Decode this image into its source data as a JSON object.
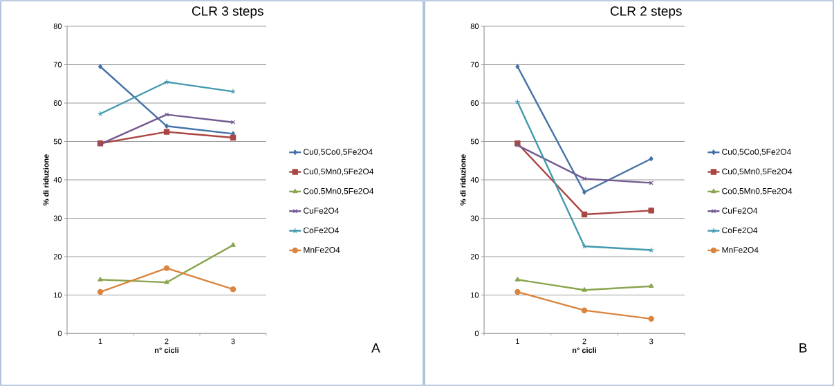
{
  "chart_data": [
    {
      "type": "line",
      "title": "CLR 3 steps",
      "xlabel": "n° cicli",
      "ylabel": "% di riduzione",
      "categories": [
        "1",
        "2",
        "3"
      ],
      "series": [
        {
          "name": "Cu0,5Co0,5Fe2O4",
          "color": "#4572a7",
          "marker": "diamond",
          "values": [
            69.5,
            54,
            52
          ]
        },
        {
          "name": "Cu0,5Mn0,5Fe2O4",
          "color": "#aa4643",
          "marker": "square",
          "values": [
            49.5,
            52.5,
            51
          ]
        },
        {
          "name": "Co0,5Mn0,5Fe2O4",
          "color": "#89a54e",
          "marker": "triangle",
          "values": [
            14,
            13.3,
            23
          ]
        },
        {
          "name": "CuFe2O4",
          "color": "#71588f",
          "marker": "cross",
          "values": [
            49.3,
            57,
            55
          ]
        },
        {
          "name": "CoFe2O4",
          "color": "#4198af",
          "marker": "cross",
          "values": [
            57.2,
            65.5,
            63
          ]
        },
        {
          "name": "MnFe2O4",
          "color": "#db843d",
          "marker": "circle",
          "values": [
            10.8,
            17,
            11.5
          ]
        }
      ],
      "ylim": [
        0,
        80
      ],
      "yticks": [
        0,
        10,
        20,
        30,
        40,
        50,
        60,
        70,
        80
      ],
      "grid": "y",
      "legend": "right",
      "annotations": [
        "A"
      ]
    },
    {
      "type": "line",
      "title": "CLR 2 steps",
      "xlabel": "n° cicli",
      "ylabel": "% di riduzione",
      "categories": [
        "1",
        "2",
        "3"
      ],
      "series": [
        {
          "name": "Cu0,5Co0,5Fe2O4",
          "color": "#4572a7",
          "marker": "diamond",
          "values": [
            69.5,
            36.8,
            45.5
          ]
        },
        {
          "name": "Cu0,5Mn0,5Fe2O4",
          "color": "#aa4643",
          "marker": "square",
          "values": [
            49.5,
            31,
            32
          ]
        },
        {
          "name": "Co0,5Mn0,5Fe2O4",
          "color": "#89a54e",
          "marker": "triangle",
          "values": [
            14,
            11.3,
            12.3
          ]
        },
        {
          "name": "CuFe2O4",
          "color": "#71588f",
          "marker": "cross",
          "values": [
            49,
            40.3,
            39.2
          ]
        },
        {
          "name": "CoFe2O4",
          "color": "#4198af",
          "marker": "cross",
          "values": [
            60.3,
            22.7,
            21.7
          ]
        },
        {
          "name": "MnFe2O4",
          "color": "#db843d",
          "marker": "circle",
          "values": [
            10.8,
            6,
            3.8
          ]
        }
      ],
      "ylim": [
        0,
        80
      ],
      "yticks": [
        0,
        10,
        20,
        30,
        40,
        50,
        60,
        70,
        80
      ],
      "grid": "y",
      "legend": "right",
      "annotations": [
        "B"
      ]
    }
  ]
}
